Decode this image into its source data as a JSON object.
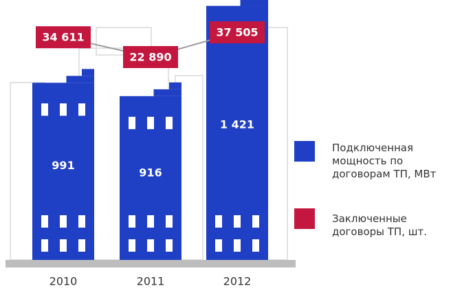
{
  "chart_data": {
    "type": "bar",
    "categories": [
      "2010",
      "2011",
      "2012"
    ],
    "series": [
      {
        "name": "Подключенная мощность по договорам ТП, МВт",
        "color": "#1f3fc4",
        "values": [
          991,
          916,
          1421
        ],
        "value_labels": [
          "991",
          "916",
          "1 421"
        ]
      },
      {
        "name": "Заключенные договоры ТП, шт.",
        "color": "#c4173f",
        "type": "line",
        "values": [
          34611,
          22890,
          37505
        ],
        "value_labels": [
          "34 611",
          "22 890",
          "37 505"
        ]
      }
    ]
  }
}
